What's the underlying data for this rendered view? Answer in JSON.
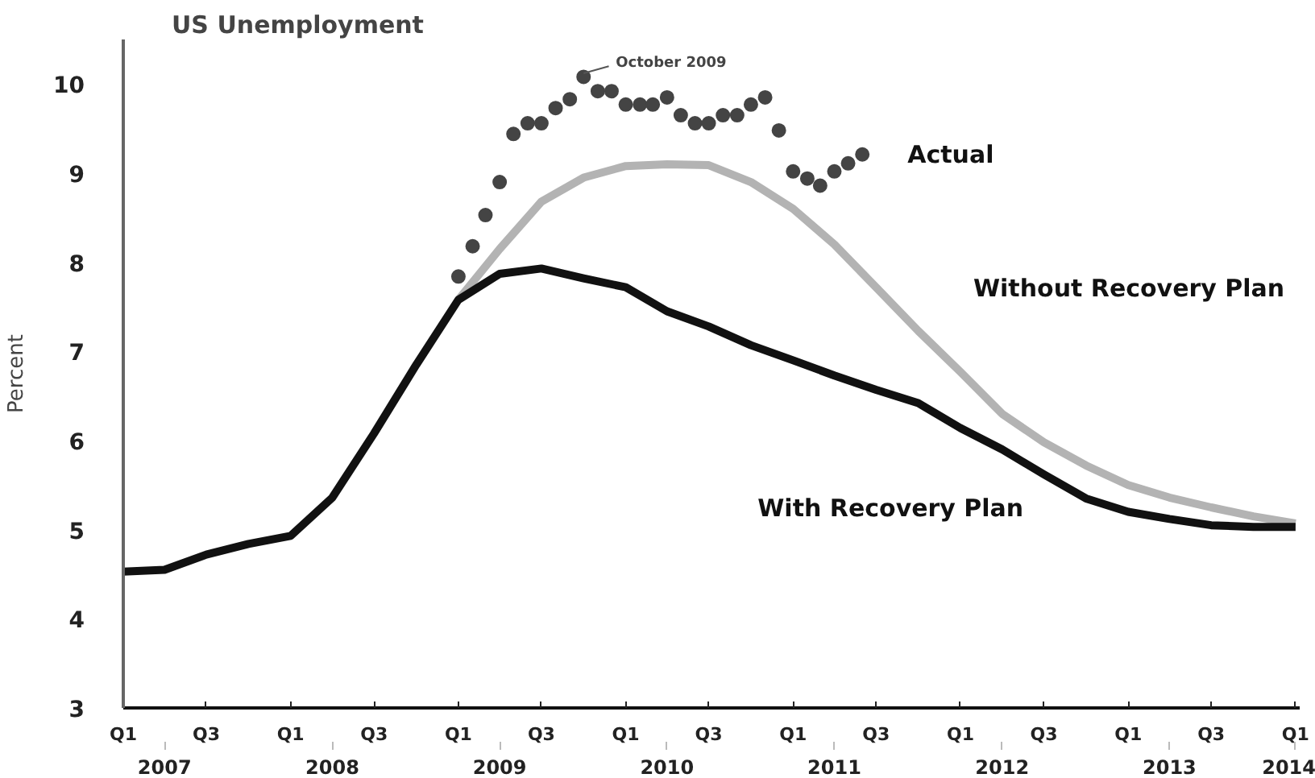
{
  "chart_data": {
    "type": "line",
    "title": "US Unemployment",
    "ylabel": "Percent",
    "xlim": [
      "2007-01-01",
      "2014-01-10"
    ],
    "ylim": [
      3,
      10.5
    ],
    "xticks": [
      {
        "value": "2007-01",
        "label": "Q1"
      },
      {
        "value": "2007-07",
        "label": "Q3"
      },
      {
        "value": "2008-01",
        "label": "Q1"
      },
      {
        "value": "2008-07",
        "label": "Q3"
      },
      {
        "value": "2009-01",
        "label": "Q1"
      },
      {
        "value": "2009-07",
        "label": "Q3"
      },
      {
        "value": "2010-01",
        "label": "Q1"
      },
      {
        "value": "2010-07",
        "label": "Q3"
      },
      {
        "value": "2011-01",
        "label": "Q1"
      },
      {
        "value": "2011-07",
        "label": "Q3"
      },
      {
        "value": "2012-01",
        "label": "Q1"
      },
      {
        "value": "2012-07",
        "label": "Q3"
      },
      {
        "value": "2013-01",
        "label": "Q1"
      },
      {
        "value": "2013-07",
        "label": "Q3"
      },
      {
        "value": "2014-01",
        "label": "Q1"
      }
    ],
    "yticks": [
      3,
      4,
      5,
      6,
      7,
      8,
      9,
      10
    ],
    "series": [
      {
        "name": "Actual",
        "type": "scatter",
        "marker": "circle",
        "color": "#444444",
        "x": [
          "2009-01",
          "2009-02",
          "2009-03",
          "2009-04",
          "2009-05",
          "2009-06",
          "2009-07",
          "2009-08",
          "2009-09",
          "2009-10",
          "2009-11",
          "2009-12",
          "2010-01",
          "2010-02",
          "2010-03",
          "2010-04",
          "2010-05",
          "2010-06",
          "2010-07",
          "2010-08",
          "2010-09",
          "2010-10",
          "2010-11",
          "2010-12",
          "2011-01",
          "2011-02",
          "2011-03",
          "2011-04",
          "2011-05",
          "2011-06"
        ],
        "values": [
          7.84,
          8.18,
          8.53,
          8.9,
          9.44,
          9.56,
          9.56,
          9.73,
          9.83,
          10.08,
          9.92,
          9.92,
          9.77,
          9.77,
          9.77,
          9.85,
          9.65,
          9.56,
          9.56,
          9.65,
          9.65,
          9.77,
          9.85,
          9.48,
          9.02,
          8.94,
          8.86,
          9.02,
          9.11,
          9.21
        ]
      },
      {
        "name": "Without Recovery Plan",
        "color": "#b3b3b3",
        "x": [
          "2009-01",
          "2009-04",
          "2009-07",
          "2009-10",
          "2010-01",
          "2010-04",
          "2010-07",
          "2010-10",
          "2011-01",
          "2011-04",
          "2011-07",
          "2011-10",
          "2012-01",
          "2012-04",
          "2012-07",
          "2012-10",
          "2013-01",
          "2013-04",
          "2013-07",
          "2013-10",
          "2014-01"
        ],
        "values": [
          7.58,
          8.15,
          8.68,
          8.95,
          9.08,
          9.1,
          9.09,
          8.9,
          8.6,
          8.2,
          7.72,
          7.23,
          6.77,
          6.3,
          5.98,
          5.72,
          5.5,
          5.36,
          5.25,
          5.15,
          5.07
        ]
      },
      {
        "name": "With Recovery Plan",
        "color": "#111111",
        "x": [
          "2007-01",
          "2007-04",
          "2007-07",
          "2007-10",
          "2008-01",
          "2008-04",
          "2008-07",
          "2008-10",
          "2009-01",
          "2009-04",
          "2009-07",
          "2009-10",
          "2010-01",
          "2010-04",
          "2010-07",
          "2010-10",
          "2011-01",
          "2011-04",
          "2011-07",
          "2011-10",
          "2012-01",
          "2012-04",
          "2012-07",
          "2012-10",
          "2013-01",
          "2013-04",
          "2013-07",
          "2013-10",
          "2014-01"
        ],
        "values": [
          4.53,
          4.55,
          4.72,
          4.84,
          4.93,
          5.36,
          6.08,
          6.85,
          7.58,
          7.87,
          7.93,
          7.82,
          7.72,
          7.45,
          7.28,
          7.07,
          6.9,
          6.73,
          6.57,
          6.42,
          6.14,
          5.9,
          5.62,
          5.35,
          5.2,
          5.12,
          5.05,
          5.03,
          5.03
        ]
      }
    ],
    "annotations": [
      {
        "text": "October 2009",
        "x": "2009-10",
        "y": 10.08
      },
      {
        "text": "2007",
        "x": "2007-04"
      },
      {
        "text": "2008",
        "x": "2008-04"
      },
      {
        "text": "2009",
        "x": "2009-04"
      },
      {
        "text": "2010",
        "x": "2010-04"
      },
      {
        "text": "2011",
        "x": "2011-04"
      },
      {
        "text": "2012",
        "x": "2012-04"
      },
      {
        "text": "2013",
        "x": "2013-04"
      },
      {
        "text": "2014",
        "x": "2014-01"
      }
    ]
  }
}
